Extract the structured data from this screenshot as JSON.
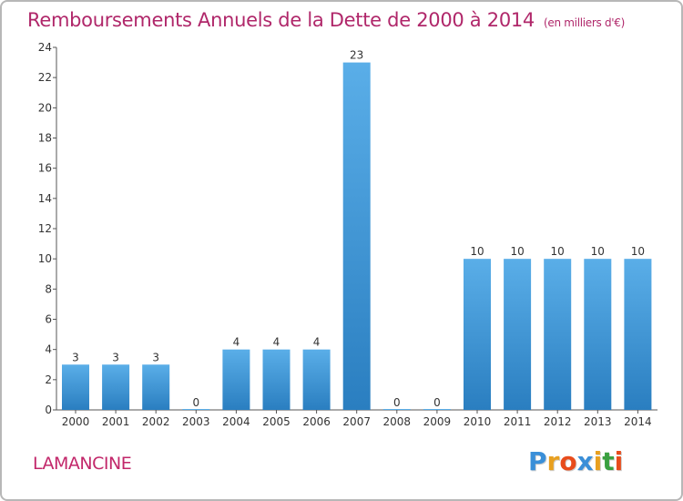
{
  "chart_data": {
    "type": "bar",
    "title": "Remboursements Annuels de la Dette de 2000 à 2014",
    "unit": "(en milliers d'€)",
    "categories": [
      "2000",
      "2001",
      "2002",
      "2003",
      "2004",
      "2005",
      "2006",
      "2007",
      "2008",
      "2009",
      "2010",
      "2011",
      "2012",
      "2013",
      "2014"
    ],
    "values": [
      3,
      3,
      3,
      0,
      4,
      4,
      4,
      23,
      0,
      0,
      10,
      10,
      10,
      10,
      10
    ],
    "ylim": [
      0,
      24
    ],
    "yticks": [
      0,
      2,
      4,
      6,
      8,
      10,
      12,
      14,
      16,
      18,
      20,
      22,
      24
    ],
    "grid": false,
    "colors": {
      "bar_light": "#5aaee8",
      "bar_dark": "#2a7ec0",
      "axis": "#555555"
    }
  },
  "footer": {
    "commune": "LAMANCINE",
    "logo": "Proxiti",
    "logo_colors": [
      "#3a8fd8",
      "#e8a020",
      "#e84c1c",
      "#3a8fd8",
      "#e8a020",
      "#3aa040",
      "#e84c1c"
    ]
  }
}
